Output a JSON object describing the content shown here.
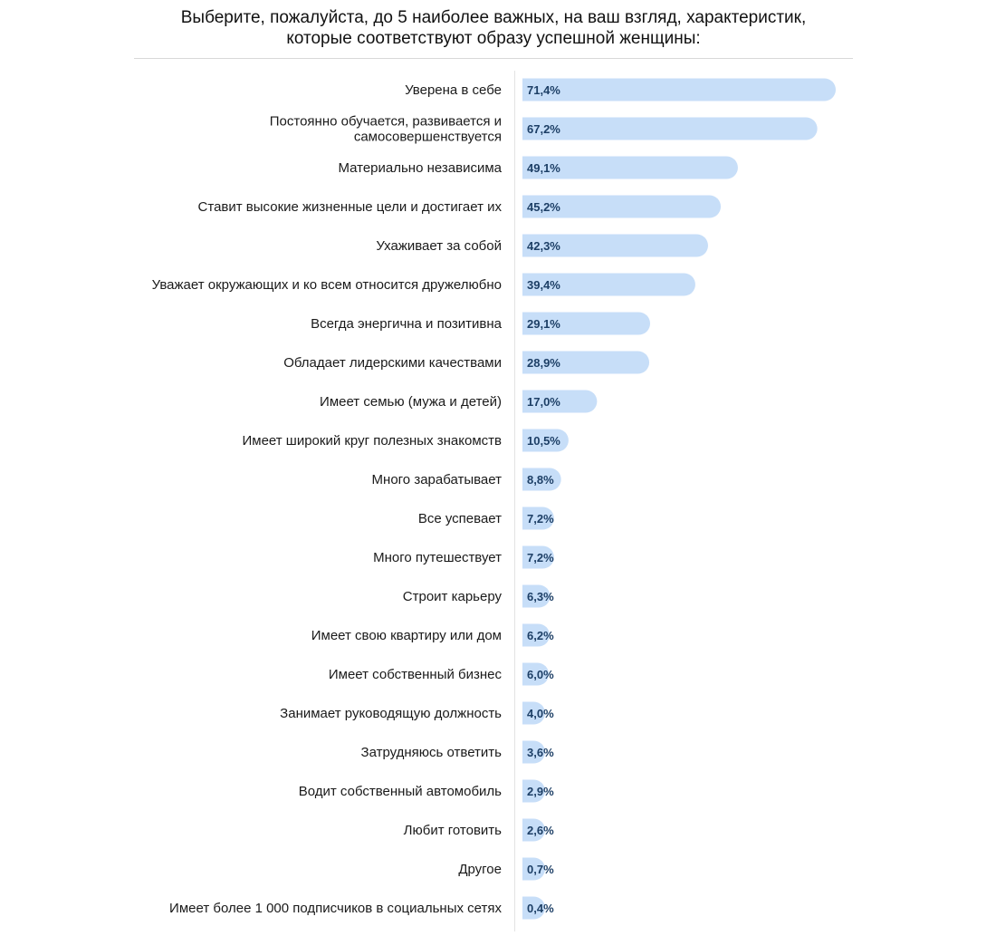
{
  "chart_data": {
    "type": "bar",
    "orientation": "horizontal",
    "title": "Выберите, пожалуйста, до 5 наиболее важных, на ваш взгляд, характеристик, которые соответствуют образу успешной женщины:",
    "title_lines": [
      "Выберите, пожалуйста, до 5 наиболее важных, на ваш взгляд, характеристик,",
      "которые соответствуют образу успешной женщины:"
    ],
    "xlabel": "",
    "ylabel": "",
    "xlim": [
      0,
      71.4
    ],
    "value_unit": "%",
    "bar_color": "#c7def8",
    "label_color": "#1d3f66",
    "categories": [
      [
        "Уверена в себе"
      ],
      [
        "Постоянно обучается, развивается и",
        "самосовершенствуется"
      ],
      [
        "Материально независима"
      ],
      [
        "Ставит высокие жизненные цели и достигает их"
      ],
      [
        "Ухаживает за собой"
      ],
      [
        "Уважает окружающих и ко всем относится дружелюбно"
      ],
      [
        "Всегда энергична и позитивна"
      ],
      [
        "Обладает лидерскими качествами"
      ],
      [
        "Имеет семью (мужа и детей)"
      ],
      [
        "Имеет широкий круг полезных знакомств"
      ],
      [
        "Много зарабатывает"
      ],
      [
        "Все успевает"
      ],
      [
        "Много путешествует"
      ],
      [
        "Строит карьеру"
      ],
      [
        "Имеет свою квартиру или дом"
      ],
      [
        "Имеет собственный бизнес"
      ],
      [
        "Занимает руководящую должность"
      ],
      [
        "Затрудняюсь ответить"
      ],
      [
        "Водит собственный автомобиль"
      ],
      [
        "Любит готовить"
      ],
      [
        "Другое"
      ],
      [
        "Имеет более 1 000 подписчиков в социальных сетях"
      ]
    ],
    "values": [
      71.4,
      67.2,
      49.1,
      45.2,
      42.3,
      39.4,
      29.1,
      28.9,
      17.0,
      10.5,
      8.8,
      7.2,
      7.2,
      6.3,
      6.2,
      6.0,
      4.0,
      3.6,
      2.9,
      2.6,
      0.7,
      0.4
    ],
    "value_labels": [
      "71,4%",
      "67,2%",
      "49,1%",
      "45,2%",
      "42,3%",
      "39,4%",
      "29,1%",
      "28,9%",
      "17,0%",
      "10,5%",
      "8,8%",
      "7,2%",
      "7,2%",
      "6,3%",
      "6,2%",
      "6,0%",
      "4,0%",
      "3,6%",
      "2,9%",
      "2,6%",
      "0,7%",
      "0,4%"
    ]
  }
}
